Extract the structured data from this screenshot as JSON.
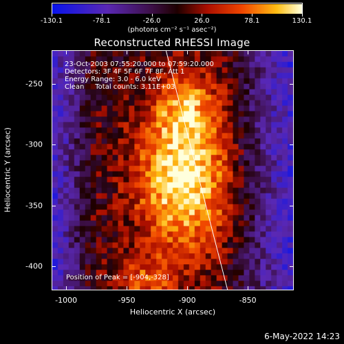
{
  "colorbar": {
    "tick_labels": [
      "-130.1",
      "-78.1",
      "-26.0",
      "26.0",
      "78.1",
      "130.1"
    ],
    "units": "(photons cm⁻² s⁻¹ asec⁻²)",
    "min": -130.1,
    "max": 130.1
  },
  "plot": {
    "title": "Reconstructed RHESSI Image",
    "xlabel": "Heliocentric X (arcsec)",
    "ylabel": "Heliocentric Y (arcsec)",
    "xlim": [
      -1012,
      -812
    ],
    "ylim": [
      -420,
      -222
    ],
    "x_tick_labels": [
      "-1000",
      "-950",
      "-900",
      "-850"
    ],
    "x_tick_values": [
      -1000,
      -950,
      -900,
      -850
    ],
    "y_tick_labels": [
      "-250",
      "-300",
      "-350",
      "-400"
    ],
    "y_tick_values": [
      -250,
      -300,
      -350,
      -400
    ]
  },
  "annotations": {
    "time_range": "23-Oct-2003 07:55:20.000 to 07:59:20.000",
    "detectors": "Detectors: 3F 4F 5F 6F 7F 8F, Att 1",
    "energy": "Energy Range: 3.0 - 6.0 keV",
    "clean": "Clean     Total counts: 3.11E+03",
    "peak": "Position of Peak = [-904,-328]"
  },
  "peak": {
    "x": -904,
    "y": -328
  },
  "limb_line": {
    "points": [
      [
        -918,
        -222
      ],
      [
        -867,
        -420
      ]
    ]
  },
  "footer": {
    "timestamp": "6-May-2022 14:23"
  }
}
